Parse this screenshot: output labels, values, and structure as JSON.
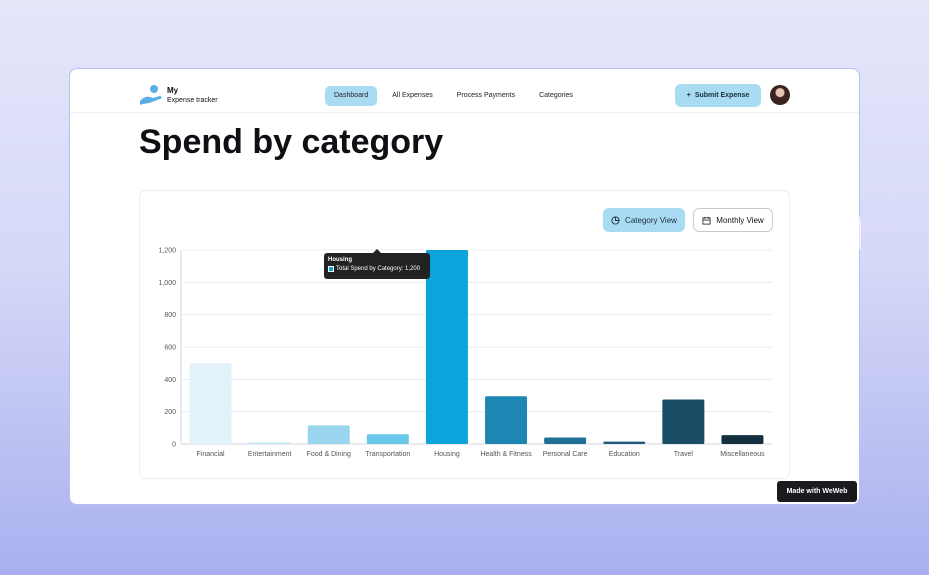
{
  "header": {
    "logo_line1": "My",
    "logo_line2": "Expense tracker",
    "nav": [
      {
        "label": "Dashboard",
        "active": true
      },
      {
        "label": "All Expenses",
        "active": false
      },
      {
        "label": "Process Payments",
        "active": false
      },
      {
        "label": "Categories",
        "active": false
      }
    ],
    "submit_label": "Submit Expense"
  },
  "page": {
    "title": "Spend by category"
  },
  "view_toggle": {
    "category_label": "Category View",
    "monthly_label": "Monthly View"
  },
  "tooltip": {
    "title": "Housing",
    "text": "Total Spend by Category: 1,200"
  },
  "footer_badge": "Made with WeWeb",
  "colors": {
    "accent": "#a9dcf3",
    "highlight_bar": "#0ba5dc"
  },
  "chart_data": {
    "type": "bar",
    "categories": [
      "Financial",
      "Entertainment",
      "Food & Dining",
      "Transportation",
      "Housing",
      "Health & Fitness",
      "Personal Care",
      "Education",
      "Travel",
      "Miscellaneous"
    ],
    "series": [
      {
        "name": "Total Spend by Category",
        "values": [
          500,
          10,
          115,
          60,
          1200,
          295,
          40,
          15,
          275,
          55
        ]
      }
    ],
    "bar_colors": [
      "#e3f2fa",
      "#c8e6f5",
      "#9ad6f0",
      "#6ac8ea",
      "#0ba5dc",
      "#1d86b3",
      "#1f6f96",
      "#1f5a7a",
      "#1a4d66",
      "#142f3f"
    ],
    "yticks": [
      "0",
      "200",
      "400",
      "600",
      "800",
      "1,000",
      "1,200"
    ],
    "ylim": [
      0,
      1200
    ],
    "grid": true,
    "legend": "none"
  }
}
